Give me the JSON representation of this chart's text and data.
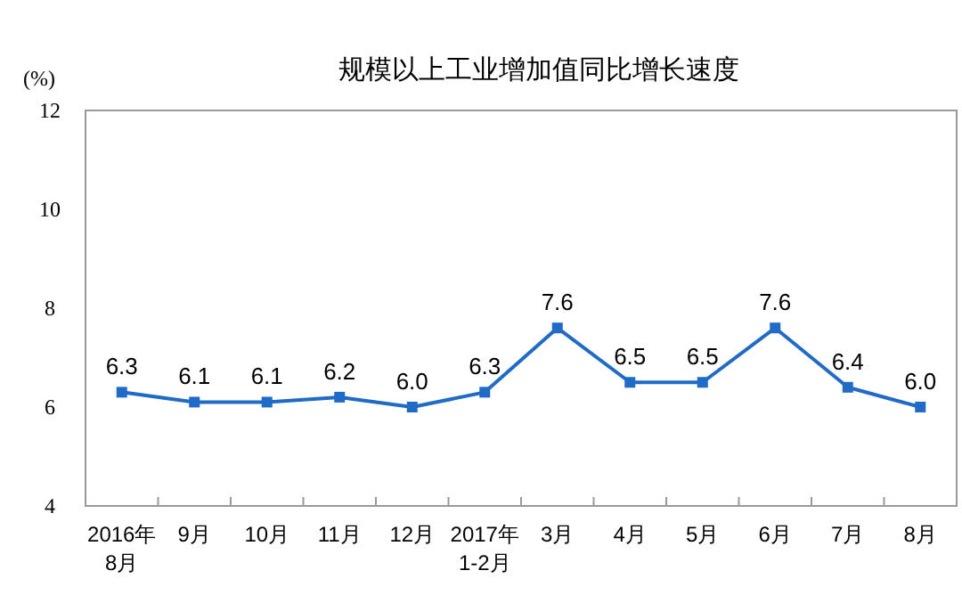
{
  "chart_data": {
    "type": "line",
    "title": "规模以上工业增加值同比增长速度",
    "ylabel": "(%)",
    "categories": [
      "2016年\n8月",
      "9月",
      "10月",
      "11月",
      "12月",
      "2017年\n1-2月",
      "3月",
      "4月",
      "5月",
      "6月",
      "7月",
      "8月"
    ],
    "series": [
      {
        "color": "#1f6bc6",
        "values": [
          6.3,
          6.1,
          6.1,
          6.2,
          6.0,
          6.3,
          7.6,
          6.5,
          6.5,
          7.6,
          6.4,
          6.0
        ],
        "value_labels": [
          "6.3",
          "6.1",
          "6.1",
          "6.2",
          "6.0",
          "6.3",
          "7.6",
          "6.5",
          "6.5",
          "7.6",
          "6.4",
          "6.0"
        ]
      }
    ],
    "ylim": [
      4,
      12
    ],
    "yticks": [
      4,
      6,
      8,
      10,
      12
    ],
    "grid": false,
    "marker": "square",
    "line_style": "solid"
  }
}
